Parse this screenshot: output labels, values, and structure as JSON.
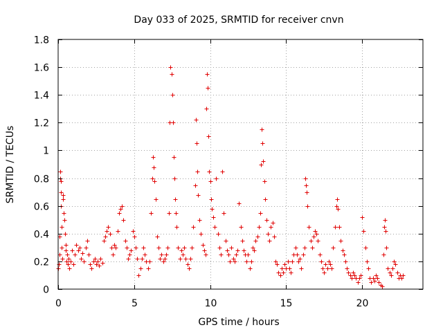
{
  "chart_data": {
    "type": "scatter",
    "title": "Day 033 of 2025, SRMTID for receiver cnvn",
    "xlabel": "GPS time / hours",
    "ylabel": "SRMTID / TECUs",
    "xlim": [
      0,
      24
    ],
    "ylim": [
      0,
      1.8
    ],
    "xticks": [
      0,
      5,
      10,
      15,
      20
    ],
    "yticks": [
      0,
      0.2,
      0.4,
      0.6,
      0.8,
      1,
      1.2,
      1.4,
      1.6,
      1.8
    ],
    "xtick_labels": [
      "0",
      "5",
      "10",
      "15",
      "20"
    ],
    "ytick_labels": [
      "0",
      "0.2",
      "0.4",
      "0.6",
      "0.8",
      "1",
      "1.2",
      "1.4",
      "1.6",
      "1.8"
    ],
    "grid": true,
    "marker": "plus",
    "series": [
      {
        "name": "SRMTID",
        "color": "#e00000",
        "points": [
          [
            0.0,
            0.15
          ],
          [
            0.05,
            0.18
          ],
          [
            0.1,
            0.25
          ],
          [
            0.1,
            0.38
          ],
          [
            0.12,
            0.8
          ],
          [
            0.14,
            0.85
          ],
          [
            0.16,
            0.78
          ],
          [
            0.18,
            0.7
          ],
          [
            0.2,
            0.6
          ],
          [
            0.22,
            0.45
          ],
          [
            0.24,
            0.3
          ],
          [
            0.26,
            0.22
          ],
          [
            0.3,
            0.68
          ],
          [
            0.34,
            0.65
          ],
          [
            0.38,
            0.55
          ],
          [
            0.42,
            0.5
          ],
          [
            0.45,
            0.4
          ],
          [
            0.48,
            0.28
          ],
          [
            0.5,
            0.32
          ],
          [
            0.55,
            0.2
          ],
          [
            0.6,
            0.25
          ],
          [
            0.65,
            0.18
          ],
          [
            0.7,
            0.22
          ],
          [
            0.75,
            0.15
          ],
          [
            0.8,
            0.2
          ],
          [
            0.9,
            0.28
          ],
          [
            1.0,
            0.18
          ],
          [
            1.1,
            0.25
          ],
          [
            1.2,
            0.32
          ],
          [
            1.3,
            0.28
          ],
          [
            1.4,
            0.3
          ],
          [
            1.5,
            0.22
          ],
          [
            1.6,
            0.26
          ],
          [
            1.7,
            0.2
          ],
          [
            1.8,
            0.3
          ],
          [
            1.9,
            0.35
          ],
          [
            2.0,
            0.25
          ],
          [
            2.1,
            0.18
          ],
          [
            2.2,
            0.15
          ],
          [
            2.3,
            0.2
          ],
          [
            2.4,
            0.22
          ],
          [
            2.5,
            0.18
          ],
          [
            2.6,
            0.2
          ],
          [
            2.7,
            0.17
          ],
          [
            2.8,
            0.22
          ],
          [
            2.9,
            0.19
          ],
          [
            3.0,
            0.35
          ],
          [
            3.1,
            0.38
          ],
          [
            3.2,
            0.42
          ],
          [
            3.3,
            0.45
          ],
          [
            3.4,
            0.4
          ],
          [
            3.5,
            0.3
          ],
          [
            3.6,
            0.25
          ],
          [
            3.7,
            0.32
          ],
          [
            3.8,
            0.3
          ],
          [
            3.9,
            0.42
          ],
          [
            4.0,
            0.55
          ],
          [
            4.1,
            0.58
          ],
          [
            4.2,
            0.6
          ],
          [
            4.3,
            0.5
          ],
          [
            4.4,
            0.35
          ],
          [
            4.5,
            0.3
          ],
          [
            4.6,
            0.22
          ],
          [
            4.7,
            0.25
          ],
          [
            4.8,
            0.28
          ],
          [
            4.9,
            0.42
          ],
          [
            5.0,
            0.38
          ],
          [
            5.1,
            0.3
          ],
          [
            5.2,
            0.22
          ],
          [
            5.3,
            0.1
          ],
          [
            5.4,
            0.15
          ],
          [
            5.5,
            0.22
          ],
          [
            5.6,
            0.3
          ],
          [
            5.7,
            0.25
          ],
          [
            5.8,
            0.2
          ],
          [
            5.9,
            0.15
          ],
          [
            6.0,
            0.2
          ],
          [
            6.1,
            0.55
          ],
          [
            6.2,
            0.8
          ],
          [
            6.25,
            0.95
          ],
          [
            6.3,
            0.88
          ],
          [
            6.35,
            0.78
          ],
          [
            6.4,
            0.65
          ],
          [
            6.5,
            0.38
          ],
          [
            6.6,
            0.3
          ],
          [
            6.7,
            0.22
          ],
          [
            6.8,
            0.25
          ],
          [
            6.9,
            0.2
          ],
          [
            7.0,
            0.22
          ],
          [
            7.1,
            0.25
          ],
          [
            7.2,
            0.3
          ],
          [
            7.3,
            0.55
          ],
          [
            7.35,
            1.2
          ],
          [
            7.4,
            1.6
          ],
          [
            7.45,
            1.55
          ],
          [
            7.5,
            1.4
          ],
          [
            7.55,
            1.2
          ],
          [
            7.6,
            0.95
          ],
          [
            7.65,
            0.8
          ],
          [
            7.7,
            0.65
          ],
          [
            7.75,
            0.55
          ],
          [
            7.8,
            0.45
          ],
          [
            7.9,
            0.3
          ],
          [
            8.0,
            0.22
          ],
          [
            8.1,
            0.28
          ],
          [
            8.2,
            0.25
          ],
          [
            8.3,
            0.3
          ],
          [
            8.4,
            0.22
          ],
          [
            8.5,
            0.18
          ],
          [
            8.6,
            0.15
          ],
          [
            8.7,
            0.22
          ],
          [
            8.8,
            0.3
          ],
          [
            8.9,
            0.45
          ],
          [
            9.0,
            0.75
          ],
          [
            9.05,
            1.22
          ],
          [
            9.1,
            1.05
          ],
          [
            9.15,
            0.85
          ],
          [
            9.2,
            0.68
          ],
          [
            9.3,
            0.5
          ],
          [
            9.4,
            0.4
          ],
          [
            9.5,
            0.32
          ],
          [
            9.6,
            0.28
          ],
          [
            9.7,
            0.25
          ],
          [
            9.75,
            1.3
          ],
          [
            9.8,
            1.55
          ],
          [
            9.85,
            1.45
          ],
          [
            9.9,
            1.1
          ],
          [
            9.95,
            0.85
          ],
          [
            10.0,
            0.78
          ],
          [
            10.05,
            0.65
          ],
          [
            10.1,
            0.58
          ],
          [
            10.2,
            0.52
          ],
          [
            10.3,
            0.45
          ],
          [
            10.4,
            0.8
          ],
          [
            10.5,
            0.4
          ],
          [
            10.6,
            0.3
          ],
          [
            10.7,
            0.25
          ],
          [
            10.8,
            0.85
          ],
          [
            10.9,
            0.55
          ],
          [
            11.0,
            0.35
          ],
          [
            11.1,
            0.28
          ],
          [
            11.2,
            0.25
          ],
          [
            11.3,
            0.2
          ],
          [
            11.4,
            0.3
          ],
          [
            11.5,
            0.22
          ],
          [
            11.6,
            0.2
          ],
          [
            11.7,
            0.25
          ],
          [
            11.8,
            0.28
          ],
          [
            11.9,
            0.62
          ],
          [
            12.0,
            0.45
          ],
          [
            12.1,
            0.35
          ],
          [
            12.2,
            0.28
          ],
          [
            12.3,
            0.25
          ],
          [
            12.4,
            0.2
          ],
          [
            12.5,
            0.25
          ],
          [
            12.6,
            0.15
          ],
          [
            12.7,
            0.2
          ],
          [
            12.8,
            0.3
          ],
          [
            12.9,
            0.28
          ],
          [
            13.0,
            0.35
          ],
          [
            13.1,
            0.38
          ],
          [
            13.2,
            0.45
          ],
          [
            13.3,
            0.55
          ],
          [
            13.35,
            0.9
          ],
          [
            13.4,
            1.15
          ],
          [
            13.45,
            1.05
          ],
          [
            13.5,
            0.92
          ],
          [
            13.55,
            0.78
          ],
          [
            13.6,
            0.65
          ],
          [
            13.7,
            0.5
          ],
          [
            13.8,
            0.4
          ],
          [
            13.9,
            0.35
          ],
          [
            14.0,
            0.45
          ],
          [
            14.1,
            0.48
          ],
          [
            14.2,
            0.38
          ],
          [
            14.3,
            0.2
          ],
          [
            14.4,
            0.18
          ],
          [
            14.5,
            0.12
          ],
          [
            14.6,
            0.1
          ],
          [
            14.7,
            0.15
          ],
          [
            14.8,
            0.12
          ],
          [
            14.9,
            0.18
          ],
          [
            15.0,
            0.15
          ],
          [
            15.1,
            0.2
          ],
          [
            15.2,
            0.15
          ],
          [
            15.3,
            0.12
          ],
          [
            15.4,
            0.2
          ],
          [
            15.5,
            0.25
          ],
          [
            15.6,
            0.3
          ],
          [
            15.7,
            0.25
          ],
          [
            15.8,
            0.2
          ],
          [
            15.9,
            0.22
          ],
          [
            16.0,
            0.15
          ],
          [
            16.1,
            0.25
          ],
          [
            16.2,
            0.3
          ],
          [
            16.25,
            0.8
          ],
          [
            16.3,
            0.75
          ],
          [
            16.35,
            0.7
          ],
          [
            16.4,
            0.6
          ],
          [
            16.5,
            0.45
          ],
          [
            16.6,
            0.35
          ],
          [
            16.7,
            0.3
          ],
          [
            16.8,
            0.38
          ],
          [
            16.9,
            0.42
          ],
          [
            17.0,
            0.4
          ],
          [
            17.1,
            0.35
          ],
          [
            17.2,
            0.25
          ],
          [
            17.3,
            0.2
          ],
          [
            17.4,
            0.15
          ],
          [
            17.5,
            0.12
          ],
          [
            17.6,
            0.18
          ],
          [
            17.7,
            0.15
          ],
          [
            17.8,
            0.2
          ],
          [
            17.9,
            0.18
          ],
          [
            18.0,
            0.15
          ],
          [
            18.1,
            0.3
          ],
          [
            18.2,
            0.45
          ],
          [
            18.3,
            0.6
          ],
          [
            18.35,
            0.65
          ],
          [
            18.4,
            0.58
          ],
          [
            18.5,
            0.45
          ],
          [
            18.6,
            0.35
          ],
          [
            18.7,
            0.28
          ],
          [
            18.8,
            0.25
          ],
          [
            18.9,
            0.2
          ],
          [
            19.0,
            0.15
          ],
          [
            19.1,
            0.12
          ],
          [
            19.2,
            0.1
          ],
          [
            19.3,
            0.08
          ],
          [
            19.4,
            0.12
          ],
          [
            19.5,
            0.1
          ],
          [
            19.6,
            0.08
          ],
          [
            19.7,
            0.05
          ],
          [
            19.8,
            0.08
          ],
          [
            19.9,
            0.1
          ],
          [
            20.0,
            0.52
          ],
          [
            20.1,
            0.42
          ],
          [
            20.2,
            0.3
          ],
          [
            20.3,
            0.2
          ],
          [
            20.4,
            0.15
          ],
          [
            20.5,
            0.08
          ],
          [
            20.6,
            0.05
          ],
          [
            20.7,
            0.08
          ],
          [
            20.8,
            0.06
          ],
          [
            20.9,
            0.1
          ],
          [
            21.0,
            0.08
          ],
          [
            21.1,
            0.05
          ],
          [
            21.2,
            0.03
          ],
          [
            21.3,
            0.02
          ],
          [
            21.4,
            0.25
          ],
          [
            21.45,
            0.45
          ],
          [
            21.5,
            0.5
          ],
          [
            21.55,
            0.42
          ],
          [
            21.6,
            0.3
          ],
          [
            21.7,
            0.15
          ],
          [
            21.8,
            0.12
          ],
          [
            21.9,
            0.1
          ],
          [
            22.0,
            0.15
          ],
          [
            22.1,
            0.2
          ],
          [
            22.2,
            0.18
          ],
          [
            22.3,
            0.12
          ],
          [
            22.4,
            0.08
          ],
          [
            22.5,
            0.1
          ],
          [
            22.6,
            0.08
          ],
          [
            22.7,
            0.1
          ]
        ]
      }
    ]
  }
}
